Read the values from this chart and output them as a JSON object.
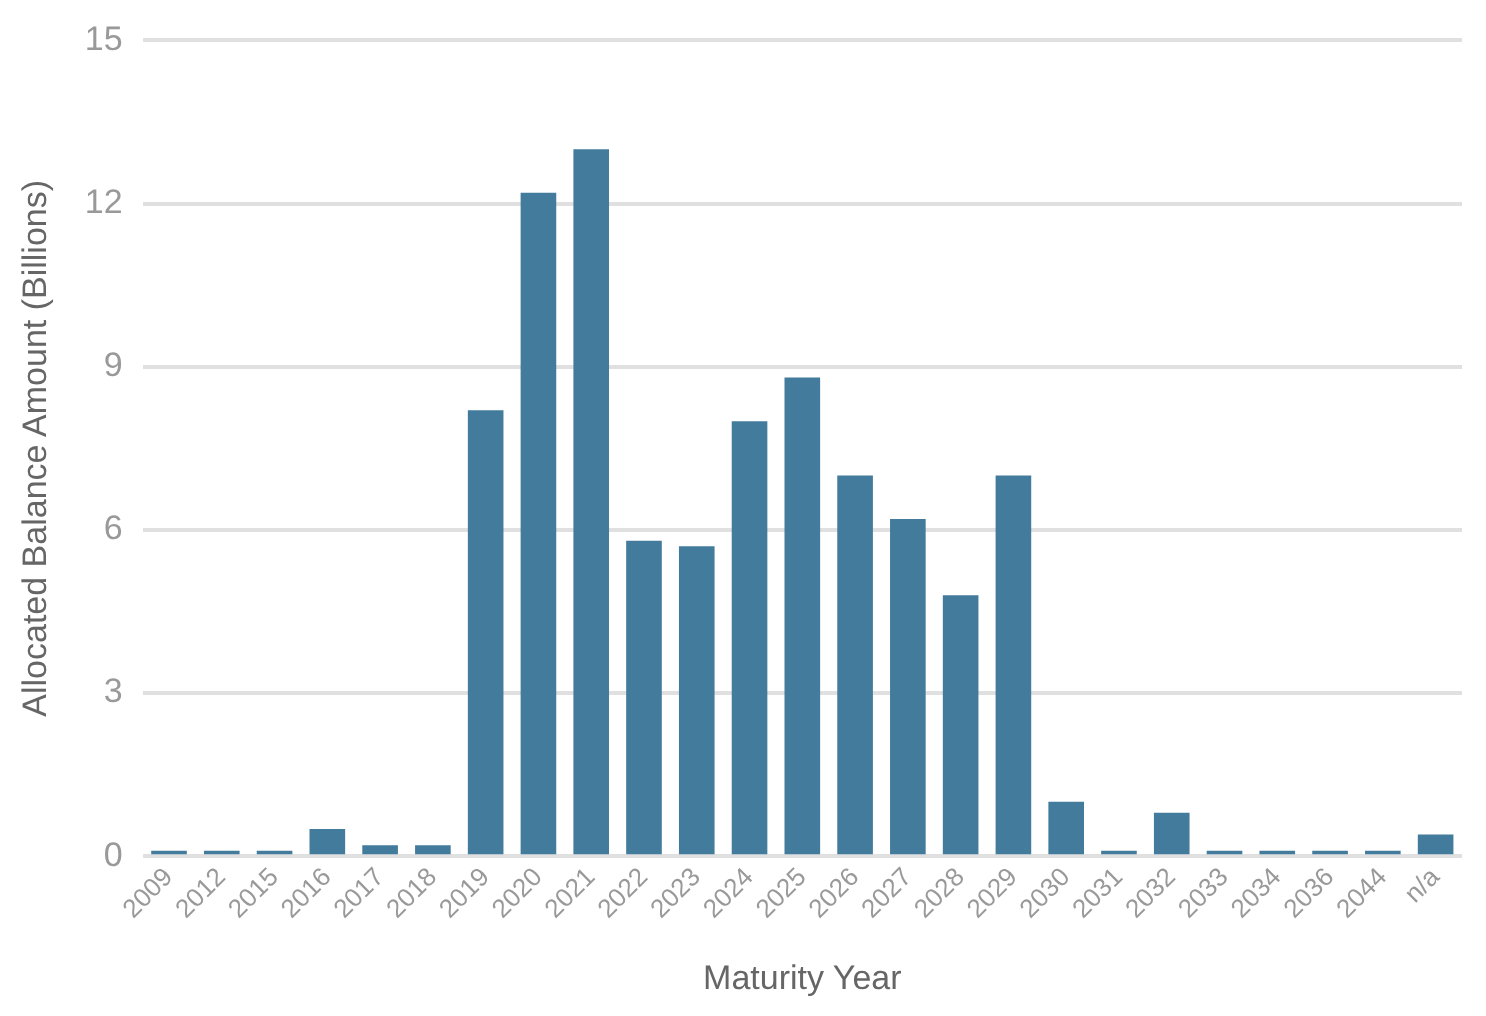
{
  "chart_data": {
    "type": "bar",
    "xlabel": "Maturity Year",
    "ylabel": "Allocated Balance Amount (Billions)",
    "categories": [
      "2009",
      "2012",
      "2015",
      "2016",
      "2017",
      "2018",
      "2019",
      "2020",
      "2021",
      "2022",
      "2023",
      "2024",
      "2025",
      "2026",
      "2027",
      "2028",
      "2029",
      "2030",
      "2031",
      "2032",
      "2033",
      "2034",
      "2036",
      "2044",
      "n/a"
    ],
    "values": [
      0.1,
      0.1,
      0.1,
      0.5,
      0.2,
      0.2,
      8.2,
      12.2,
      13.0,
      5.8,
      5.7,
      8.0,
      8.8,
      7.0,
      6.2,
      4.8,
      7.0,
      1.0,
      0.1,
      0.8,
      0.1,
      0.1,
      0.1,
      0.1,
      0.4
    ],
    "color": "#427b9b",
    "ylim": [
      0,
      15
    ],
    "yticks": [
      0,
      3,
      6,
      9,
      12,
      15
    ],
    "grid": "y",
    "legend": false
  }
}
